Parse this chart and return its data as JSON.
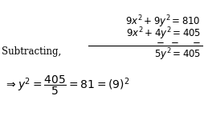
{
  "background_color": "#ffffff",
  "line1": "$9x^2 + 9y^2 = 810$",
  "line2": "$9x^2 + 4y^2 = 405$",
  "minus_signs": "$-\\;\\; -\\;\\;\\;\\; -$",
  "line3": "$5y^2 = 405$",
  "subtracting_label": "Subtracting,",
  "line4": "$\\Rightarrow y^2 = \\dfrac{405}{5} = 81 = (9)^2$",
  "fig_width": 2.59,
  "fig_height": 1.65,
  "dpi": 100
}
